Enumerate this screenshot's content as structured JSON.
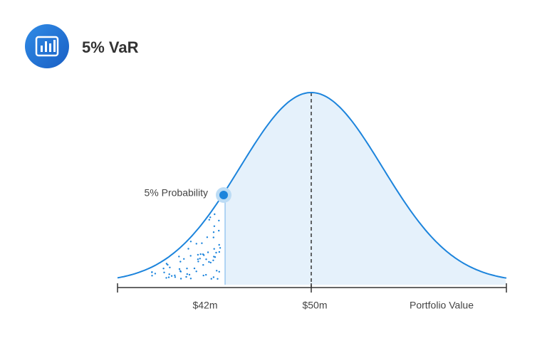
{
  "header": {
    "title": "5% VaR"
  },
  "diagram": {
    "annotation": "5% Probability",
    "axis_labels": [
      "$42m",
      "$50m"
    ],
    "axis_title": "Portfolio Value"
  }
}
